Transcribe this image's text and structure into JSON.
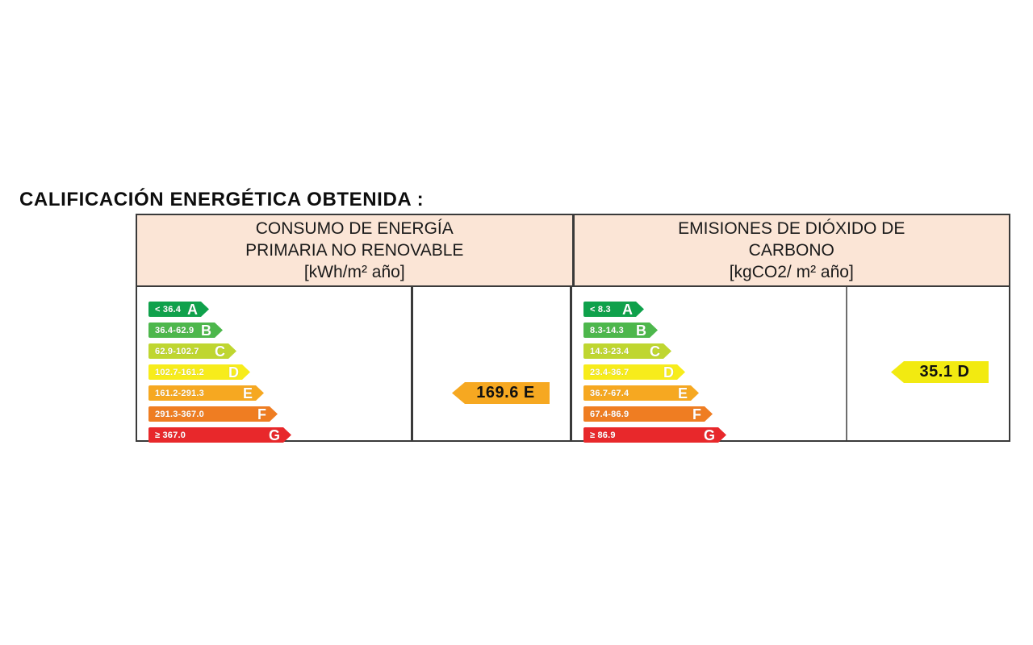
{
  "page": {
    "title": "CALIFICACIÓN ENERGÉTICA OBTENIDA :"
  },
  "colors": {
    "header_background": "#fbe5d6",
    "table_border": "#3a3a3a",
    "band_A": "#0fa14b",
    "band_B": "#4db74c",
    "band_C": "#bfd630",
    "band_D": "#f7ec1b",
    "band_E": "#f6a821",
    "band_F": "#ef7d22",
    "band_G": "#e8282b"
  },
  "table": {
    "columns": [
      {
        "header": {
          "line1": "CONSUMO DE ENERGÍA",
          "line2": "PRIMARIA NO RENOVABLE",
          "units": "[kWh/m² año]"
        },
        "scale": {
          "bands": [
            {
              "label": "A",
              "range": "< 36.4",
              "color": "#0fa14b"
            },
            {
              "label": "B",
              "range": "36.4-62.9",
              "color": "#4db74c"
            },
            {
              "label": "C",
              "range": "62.9-102.7",
              "color": "#bfd630"
            },
            {
              "label": "D",
              "range": "102.7-161.2",
              "color": "#f7ec1b"
            },
            {
              "label": "E",
              "range": "161.2-291.3",
              "color": "#f6a821"
            },
            {
              "label": "F",
              "range": "291.3-367.0",
              "color": "#ef7d22"
            },
            {
              "label": "G",
              "range": "≥ 367.0",
              "color": "#e8282b"
            }
          ]
        },
        "indicator": {
          "value": "169.6",
          "rating_letter": "E",
          "text": "169.6 E",
          "color": "#f6a821",
          "band_index": 4
        }
      },
      {
        "header": {
          "line1": "EMISIONES DE DIÓXIDO DE",
          "line2": "CARBONO",
          "units": "[kgCO2/ m² año]"
        },
        "scale": {
          "bands": [
            {
              "label": "A",
              "range": "< 8.3",
              "color": "#0fa14b"
            },
            {
              "label": "B",
              "range": "8.3-14.3",
              "color": "#4db74c"
            },
            {
              "label": "C",
              "range": "14.3-23.4",
              "color": "#bfd630"
            },
            {
              "label": "D",
              "range": "23.4-36.7",
              "color": "#f7ec1b"
            },
            {
              "label": "E",
              "range": "36.7-67.4",
              "color": "#f6a821"
            },
            {
              "label": "F",
              "range": "67.4-86.9",
              "color": "#ef7d22"
            },
            {
              "label": "G",
              "range": "≥ 86.9",
              "color": "#e8282b"
            }
          ]
        },
        "indicator": {
          "value": "35.1",
          "rating_letter": "D",
          "text": "35.1 D",
          "color": "#f2ea11",
          "band_index": 3
        }
      }
    ]
  }
}
